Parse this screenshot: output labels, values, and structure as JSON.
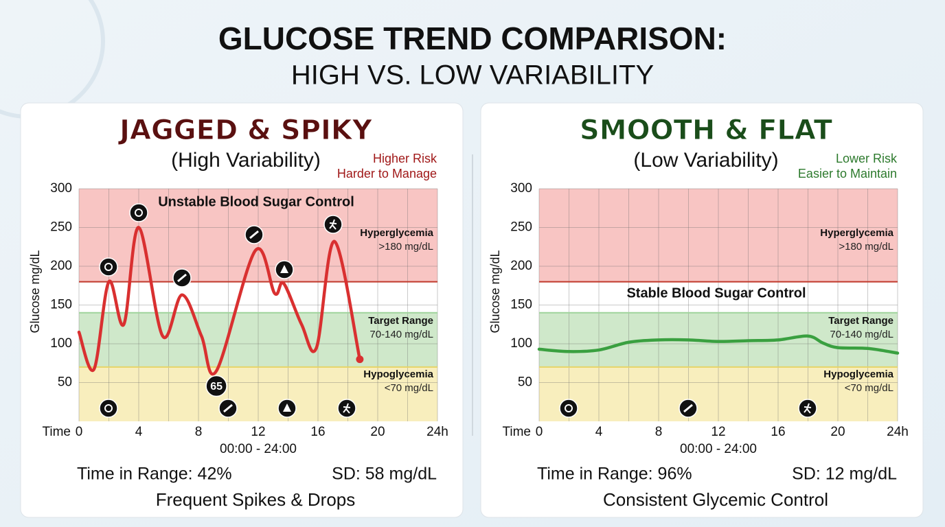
{
  "header": {
    "title": "GLUCOSE TREND COMPARISON:",
    "subtitle": "HIGH VS. LOW VARIABILITY"
  },
  "chart_data": [
    {
      "type": "line",
      "heading": "JAGGED & SPIKY",
      "subheading": "(High Variability)",
      "notes": [
        "Higher Risk",
        "Harder to Manage"
      ],
      "theme_color": "#5a1010",
      "note_color": "#a01818",
      "title": "Unstable Blood Sugar Control",
      "ylabel": "Glucose mg/dL",
      "time_label": "Time",
      "xlabel": "00:00 - 24:00",
      "x": [
        0,
        1,
        2,
        3,
        4,
        5.6,
        6.9,
        8.2,
        9.2,
        11.8,
        13.1,
        13.7,
        14.9,
        15.9,
        17.1,
        18.8
      ],
      "values": [
        115,
        67,
        180,
        125,
        250,
        110,
        163,
        110,
        65,
        220,
        165,
        178,
        125,
        95,
        232,
        80
      ],
      "color": "#d93030",
      "end_dot": true,
      "xlim": [
        0,
        24
      ],
      "xticks": [
        0,
        4,
        8,
        12,
        16,
        20,
        {
          "value": 24,
          "label": "24h"
        }
      ],
      "xgrid": [
        2,
        6,
        10,
        14,
        18,
        22
      ],
      "ylim": [
        0,
        300
      ],
      "yticks": [
        50,
        100,
        150,
        200,
        250,
        300
      ],
      "grid": true,
      "bands": [
        {
          "name": "Hyperglycemia",
          "note": ">180 mg/dL",
          "from": 180,
          "to": 300,
          "color": "#f8c5c3",
          "edge": "#c0392b"
        },
        {
          "from": 140,
          "to": 180,
          "color": "#ffffff",
          "edge": "#9fd49b"
        },
        {
          "name": "Target Range",
          "note": "70-140 mg/dL",
          "from": 70,
          "to": 140,
          "color": "#cfe8ca",
          "edge": "#e6d468"
        },
        {
          "name": "Hypoglycemia",
          "note": "<70 mg/dL",
          "from": 0,
          "to": 70,
          "color": "#f8eebd"
        }
      ],
      "stats": [
        "Time in Range: 42%",
        "SD: 58 mg/dL"
      ],
      "caption": "Frequent Spikes & Drops"
    },
    {
      "type": "line",
      "heading": "SMOOTH & FLAT",
      "subheading": "(Low Variability)",
      "notes": [
        "Lower Risk",
        "Easier to Maintain"
      ],
      "theme_color": "#1a4d1a",
      "note_color": "#2d7a2d",
      "title": "Stable Blood Sugar Control",
      "ylabel": "Glucose mg/dL",
      "time_label": "Time",
      "xlabel": "00:00 - 24:00",
      "x": [
        0,
        2,
        4,
        6,
        8,
        10,
        12,
        14,
        16,
        18,
        19,
        20,
        22,
        24
      ],
      "values": [
        93,
        90,
        92,
        102,
        105,
        105,
        103,
        104,
        105,
        110,
        101,
        95,
        94,
        88
      ],
      "color": "#3aa040",
      "end_dot": false,
      "xlim": [
        0,
        24
      ],
      "xticks": [
        0,
        4,
        8,
        12,
        16,
        20,
        {
          "value": 24,
          "label": "24h"
        }
      ],
      "xgrid": [
        2,
        6,
        10,
        14,
        18,
        22
      ],
      "ylim": [
        0,
        300
      ],
      "yticks": [
        50,
        100,
        150,
        200,
        250,
        300
      ],
      "grid": true,
      "bands": [
        {
          "name": "Hyperglycemia",
          "note": ">180 mg/dL",
          "from": 180,
          "to": 300,
          "color": "#f8c5c3",
          "edge": "#c0392b"
        },
        {
          "from": 140,
          "to": 180,
          "color": "#ffffff",
          "edge": "#9fd49b"
        },
        {
          "name": "Target Range",
          "note": "70-140 mg/dL",
          "from": 70,
          "to": 140,
          "color": "#cfe8ca",
          "edge": "#e6d468"
        },
        {
          "name": "Hypoglycemia",
          "note": "<70 mg/dL",
          "from": 0,
          "to": 70,
          "color": "#f8eebd"
        }
      ],
      "stats": [
        "Time in Range: 96%",
        "SD: 12 mg/dL"
      ],
      "caption": "Consistent Glycemic Control"
    }
  ]
}
